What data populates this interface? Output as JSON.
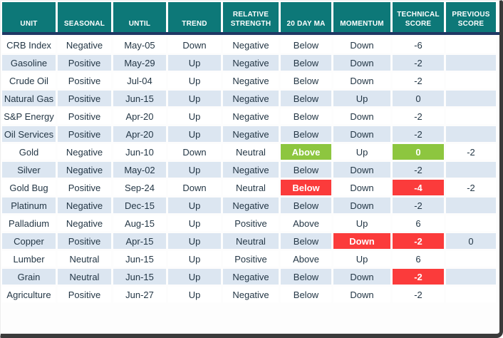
{
  "colors": {
    "header_bg": "#0D7878",
    "divider": "#1F3864",
    "row_alt": "#DCE6F1",
    "green": "#8DC63F",
    "red": "#FB3B3B",
    "text": "#243746",
    "frame_shadow": "#3B3B3B"
  },
  "chart_data": {
    "type": "table",
    "columns": [
      "Unit",
      "Seasonal",
      "Until",
      "Trend",
      "Relative Strength",
      "20 Day MA",
      "Momentum",
      "Technical Score",
      "Previous Score"
    ],
    "rows": [
      {
        "unit": "CRB Index",
        "seasonal": "Negative",
        "until": "May-05",
        "trend": "Down",
        "relative_strength": "Negative",
        "twenty_day_ma": "Below",
        "momentum": "Down",
        "technical_score": "-6",
        "previous_score": "",
        "highlights": {}
      },
      {
        "unit": "Gasoline",
        "seasonal": "Positive",
        "until": "May-29",
        "trend": "Up",
        "relative_strength": "Negative",
        "twenty_day_ma": "Below",
        "momentum": "Down",
        "technical_score": "-2",
        "previous_score": "",
        "highlights": {}
      },
      {
        "unit": "Crude Oil",
        "seasonal": "Positive",
        "until": "Jul-04",
        "trend": "Up",
        "relative_strength": "Negative",
        "twenty_day_ma": "Below",
        "momentum": "Down",
        "technical_score": "-2",
        "previous_score": "",
        "highlights": {}
      },
      {
        "unit": "Natural Gas",
        "seasonal": "Positive",
        "until": "Jun-15",
        "trend": "Up",
        "relative_strength": "Negative",
        "twenty_day_ma": "Below",
        "momentum": "Up",
        "technical_score": "0",
        "previous_score": "",
        "highlights": {}
      },
      {
        "unit": "S&P Energy",
        "seasonal": "Positive",
        "until": "Apr-20",
        "trend": "Up",
        "relative_strength": "Negative",
        "twenty_day_ma": "Below",
        "momentum": "Down",
        "technical_score": "-2",
        "previous_score": "",
        "highlights": {}
      },
      {
        "unit": "Oil Services",
        "seasonal": "Positive",
        "until": "Apr-20",
        "trend": "Up",
        "relative_strength": "Negative",
        "twenty_day_ma": "Below",
        "momentum": "Down",
        "technical_score": "-2",
        "previous_score": "",
        "highlights": {}
      },
      {
        "unit": "Gold",
        "seasonal": "Negative",
        "until": "Jun-10",
        "trend": "Down",
        "relative_strength": "Neutral",
        "twenty_day_ma": "Above",
        "momentum": "Up",
        "technical_score": "0",
        "previous_score": "-2",
        "highlights": {
          "twenty_day_ma": "green",
          "technical_score": "green"
        }
      },
      {
        "unit": "Silver",
        "seasonal": "Negative",
        "until": "May-02",
        "trend": "Up",
        "relative_strength": "Negative",
        "twenty_day_ma": "Below",
        "momentum": "Down",
        "technical_score": "-2",
        "previous_score": "",
        "highlights": {}
      },
      {
        "unit": "Gold Bug",
        "seasonal": "Positive",
        "until": "Sep-24",
        "trend": "Down",
        "relative_strength": "Neutral",
        "twenty_day_ma": "Below",
        "momentum": "Down",
        "technical_score": "-4",
        "previous_score": "-2",
        "highlights": {
          "twenty_day_ma": "red",
          "technical_score": "red"
        }
      },
      {
        "unit": "Platinum",
        "seasonal": "Negative",
        "until": "Dec-15",
        "trend": "Up",
        "relative_strength": "Negative",
        "twenty_day_ma": "Below",
        "momentum": "Down",
        "technical_score": "-2",
        "previous_score": "",
        "highlights": {}
      },
      {
        "unit": "Palladium",
        "seasonal": "Negative",
        "until": "Aug-15",
        "trend": "Up",
        "relative_strength": "Positive",
        "twenty_day_ma": "Above",
        "momentum": "Up",
        "technical_score": "6",
        "previous_score": "",
        "highlights": {}
      },
      {
        "unit": "Copper",
        "seasonal": "Positive",
        "until": "Apr-15",
        "trend": "Up",
        "relative_strength": "Neutral",
        "twenty_day_ma": "Below",
        "momentum": "Down",
        "technical_score": "-2",
        "previous_score": "0",
        "highlights": {
          "momentum": "red",
          "technical_score": "red"
        }
      },
      {
        "unit": "Lumber",
        "seasonal": "Neutral",
        "until": "Jun-15",
        "trend": "Up",
        "relative_strength": "Positive",
        "twenty_day_ma": "Above",
        "momentum": "Up",
        "technical_score": "6",
        "previous_score": "",
        "highlights": {}
      },
      {
        "unit": "Grain",
        "seasonal": "Neutral",
        "until": "Jun-15",
        "trend": "Up",
        "relative_strength": "Negative",
        "twenty_day_ma": "Below",
        "momentum": "Down",
        "technical_score": "-2",
        "previous_score": "",
        "highlights": {
          "technical_score": "red"
        }
      },
      {
        "unit": "Agriculture",
        "seasonal": "Positive",
        "until": "Jun-27",
        "trend": "Up",
        "relative_strength": "Negative",
        "twenty_day_ma": "Below",
        "momentum": "Down",
        "technical_score": "-2",
        "previous_score": "",
        "highlights": {}
      }
    ]
  }
}
